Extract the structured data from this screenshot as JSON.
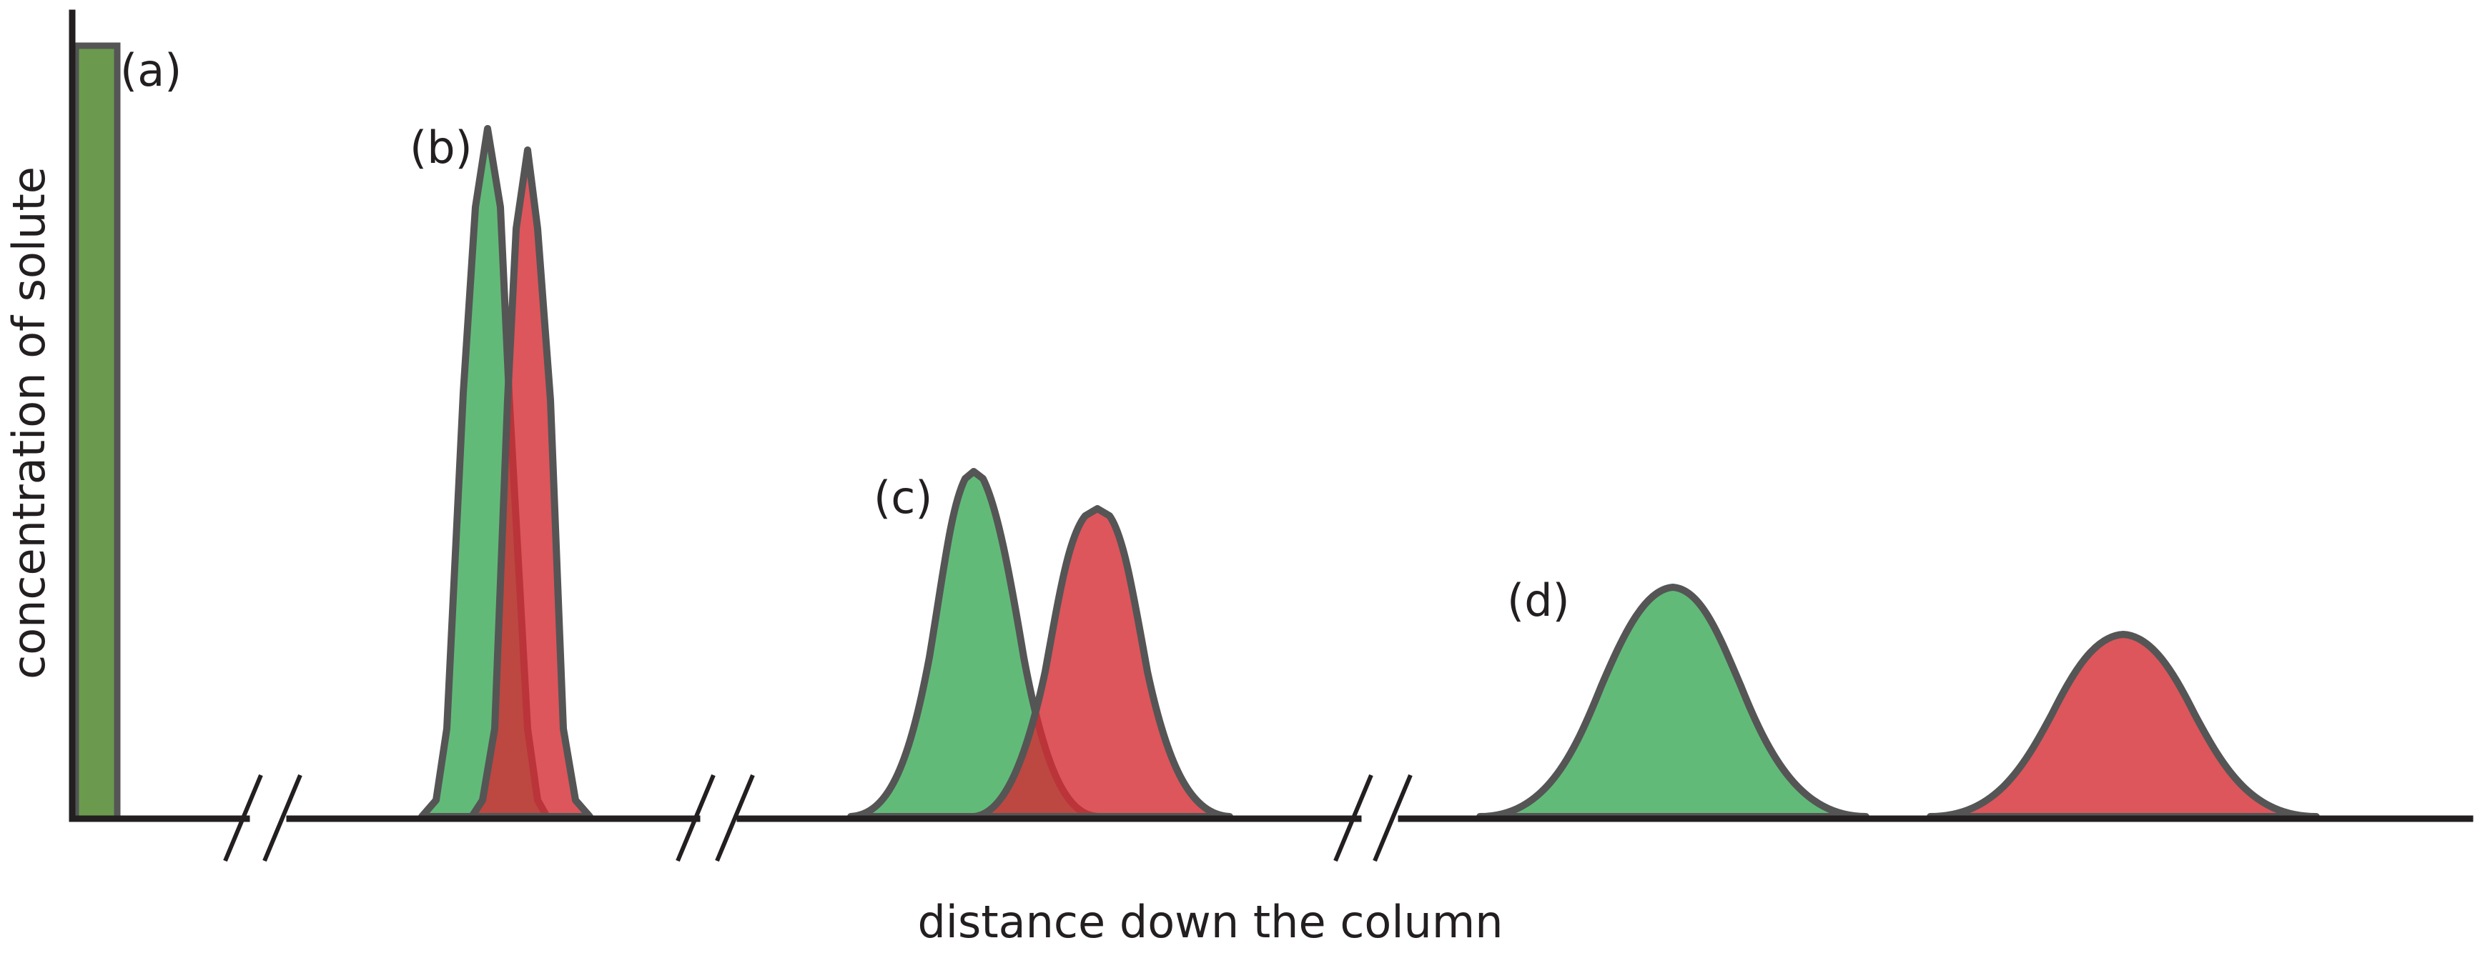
{
  "labels": {
    "y_axis": "concentration of solute",
    "x_axis": "distance down the column",
    "stage_a": "(a)",
    "stage_b": "(b)",
    "stage_c": "(c)",
    "stage_d": "(d)"
  },
  "colors": {
    "green_solute": "#3fab5c",
    "red_solute": "#d32c33",
    "overlap": "#6b9a4e",
    "outline": "#555555",
    "axis": "#231f20"
  }
}
